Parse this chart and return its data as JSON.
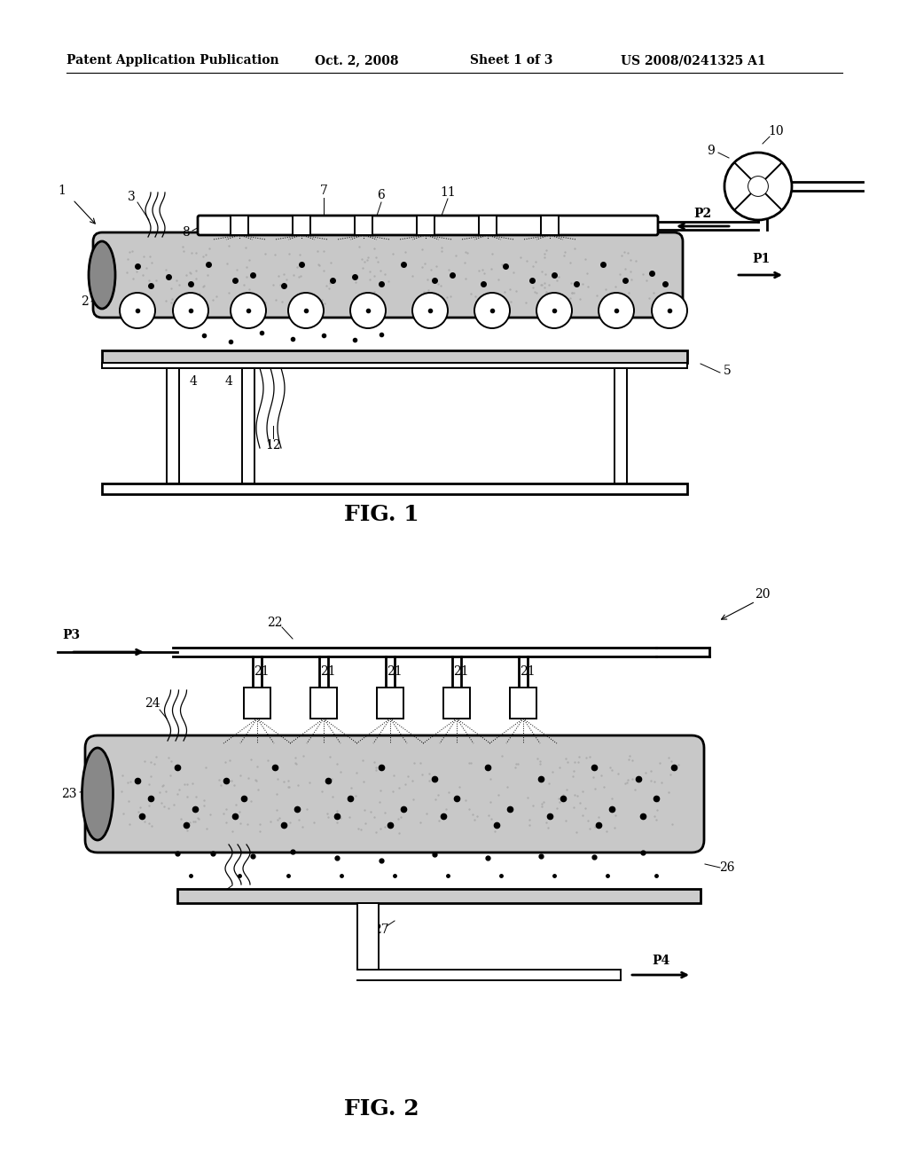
{
  "bg_color": "#ffffff",
  "header_text": "Patent Application Publication",
  "header_date": "Oct. 2, 2008",
  "header_sheet": "Sheet 1 of 3",
  "header_patent": "US 2008/0241325 A1",
  "fig1_label": "FIG. 1",
  "fig2_label": "FIG. 2",
  "gray_strand": "#c8c8c8",
  "gray_dark": "#888888",
  "gray_light": "#e0e0e0",
  "black": "#000000",
  "white": "#ffffff"
}
